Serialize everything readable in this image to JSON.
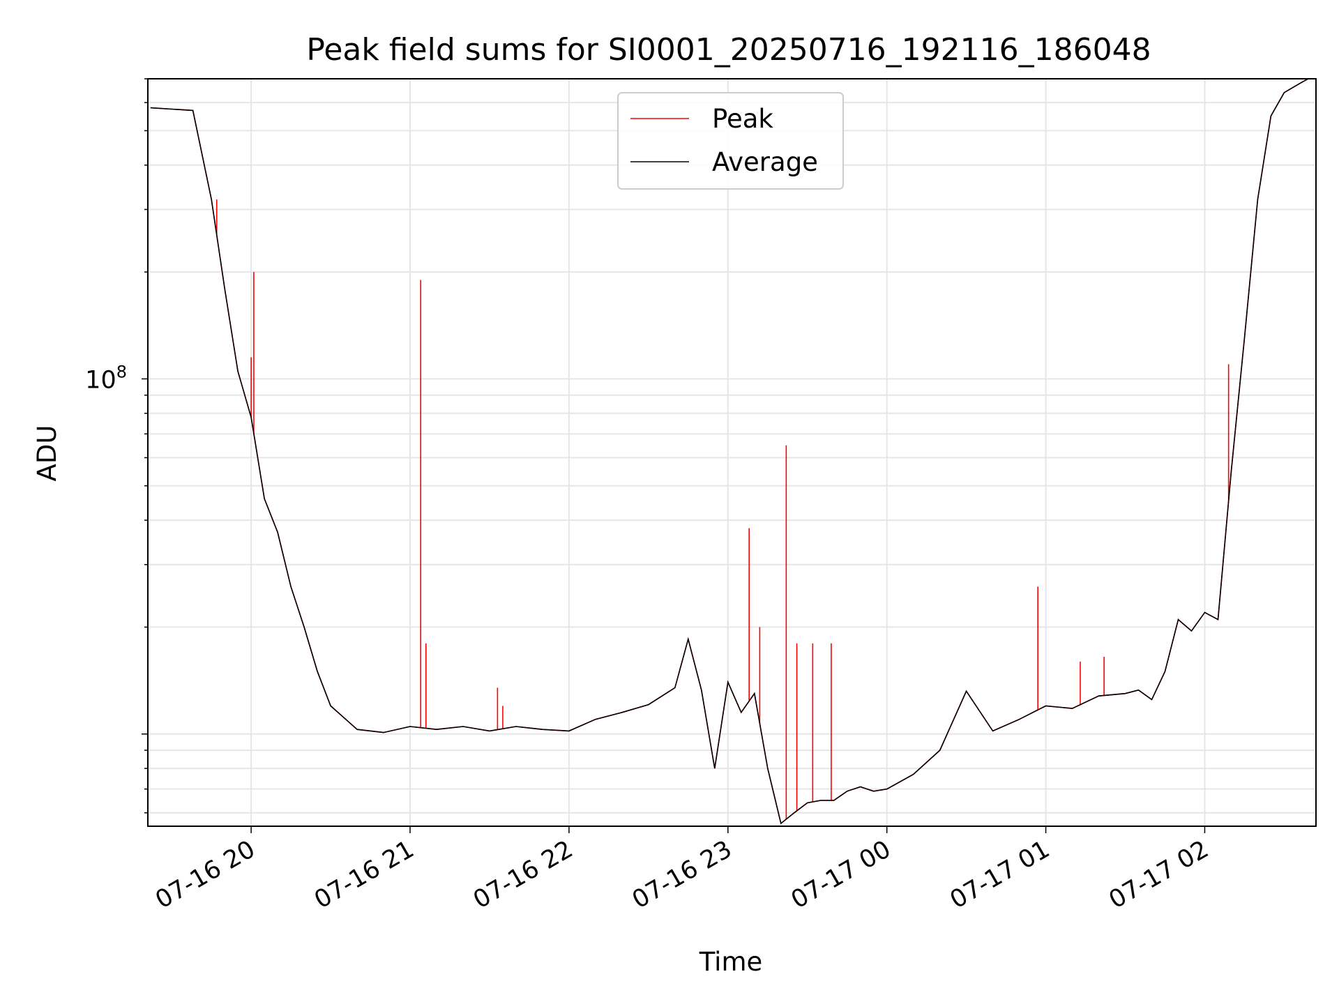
{
  "chart_data": {
    "type": "line",
    "title": "Peak field sums for SI0001_20250716_192116_186048",
    "xlabel": "Time",
    "ylabel": "ADU",
    "yscale": "log",
    "ylim": [
      5500000.0,
      700000000.0
    ],
    "xlim": [
      "2025-07-16 19:21",
      "2025-07-17 02:42"
    ],
    "grid": true,
    "legend_position": "upper center",
    "x_ticks": [
      "07-16 20",
      "07-16 21",
      "07-16 22",
      "07-16 23",
      "07-17 00",
      "07-17 01",
      "07-17 02"
    ],
    "y_ticks": [
      {
        "value": 100000000,
        "base": "10",
        "exponent": "8"
      }
    ],
    "colors": {
      "Peak": "#ff0000",
      "Average": "#000000"
    },
    "series": [
      {
        "name": "Average",
        "x": [
          "2025-07-16 19:22",
          "2025-07-16 19:30",
          "2025-07-16 19:38",
          "2025-07-16 19:45",
          "2025-07-16 19:50",
          "2025-07-16 19:55",
          "2025-07-16 20:00",
          "2025-07-16 20:05",
          "2025-07-16 20:10",
          "2025-07-16 20:15",
          "2025-07-16 20:20",
          "2025-07-16 20:25",
          "2025-07-16 20:30",
          "2025-07-16 20:40",
          "2025-07-16 20:50",
          "2025-07-16 21:00",
          "2025-07-16 21:10",
          "2025-07-16 21:20",
          "2025-07-16 21:30",
          "2025-07-16 21:40",
          "2025-07-16 21:50",
          "2025-07-16 22:00",
          "2025-07-16 22:10",
          "2025-07-16 22:20",
          "2025-07-16 22:30",
          "2025-07-16 22:40",
          "2025-07-16 22:45",
          "2025-07-16 22:50",
          "2025-07-16 22:55",
          "2025-07-16 23:00",
          "2025-07-16 23:05",
          "2025-07-16 23:10",
          "2025-07-16 23:15",
          "2025-07-16 23:20",
          "2025-07-16 23:25",
          "2025-07-16 23:30",
          "2025-07-16 23:35",
          "2025-07-16 23:40",
          "2025-07-16 23:45",
          "2025-07-16 23:50",
          "2025-07-16 23:55",
          "2025-07-17 00:00",
          "2025-07-17 00:10",
          "2025-07-17 00:20",
          "2025-07-17 00:30",
          "2025-07-17 00:40",
          "2025-07-17 00:50",
          "2025-07-17 01:00",
          "2025-07-17 01:10",
          "2025-07-17 01:20",
          "2025-07-17 01:30",
          "2025-07-17 01:35",
          "2025-07-17 01:40",
          "2025-07-17 01:45",
          "2025-07-17 01:50",
          "2025-07-17 01:55",
          "2025-07-17 02:00",
          "2025-07-17 02:05",
          "2025-07-17 02:10",
          "2025-07-17 02:15",
          "2025-07-17 02:20",
          "2025-07-17 02:25",
          "2025-07-17 02:30",
          "2025-07-17 02:36",
          "2025-07-17 02:42"
        ],
        "y": [
          580000000,
          575000000,
          570000000,
          320000000,
          180000000,
          105000000,
          78000000,
          46000000,
          37000000,
          26000000,
          20000000,
          15000000,
          12000000,
          10300000,
          10100000,
          10500000,
          10300000,
          10500000,
          10200000,
          10500000,
          10300000,
          10200000,
          11000000,
          11500000,
          12100000,
          13500000,
          18500000,
          13300000,
          8000000,
          14000000,
          11500000,
          13000000,
          8000000,
          5600000,
          6000000,
          6400000,
          6500000,
          6500000,
          6900000,
          7100000,
          6900000,
          7000000,
          7700000,
          9000000,
          13200000,
          10200000,
          11000000,
          12000000,
          11800000,
          12800000,
          13000000,
          13300000,
          12500000,
          15000000,
          21000000,
          19500000,
          22000000,
          21000000,
          55000000,
          130000000,
          320000000,
          550000000,
          640000000,
          680000000,
          720000000
        ]
      },
      {
        "name": "Peak",
        "x": [
          "2025-07-16 19:22",
          "2025-07-16 19:30",
          "2025-07-16 19:38",
          "2025-07-16 19:45",
          "2025-07-16 19:50",
          "2025-07-16 19:55",
          "2025-07-16 20:00",
          "2025-07-16 20:05",
          "2025-07-16 20:10",
          "2025-07-16 20:15",
          "2025-07-16 20:20",
          "2025-07-16 20:25",
          "2025-07-16 20:30",
          "2025-07-16 20:40",
          "2025-07-16 20:50",
          "2025-07-16 21:00",
          "2025-07-16 21:10",
          "2025-07-16 21:20",
          "2025-07-16 21:30",
          "2025-07-16 21:40",
          "2025-07-16 21:50",
          "2025-07-16 22:00",
          "2025-07-16 22:10",
          "2025-07-16 22:20",
          "2025-07-16 22:30",
          "2025-07-16 22:40",
          "2025-07-16 22:45",
          "2025-07-16 22:50",
          "2025-07-16 22:55",
          "2025-07-16 23:00",
          "2025-07-16 23:05",
          "2025-07-16 23:10",
          "2025-07-16 23:15",
          "2025-07-16 23:20",
          "2025-07-16 23:25",
          "2025-07-16 23:30",
          "2025-07-16 23:35",
          "2025-07-16 23:40",
          "2025-07-16 23:45",
          "2025-07-16 23:50",
          "2025-07-16 23:55",
          "2025-07-17 00:00",
          "2025-07-17 00:10",
          "2025-07-17 00:20",
          "2025-07-17 00:30",
          "2025-07-17 00:40",
          "2025-07-17 00:50",
          "2025-07-17 01:00",
          "2025-07-17 01:10",
          "2025-07-17 01:20",
          "2025-07-17 01:30",
          "2025-07-17 01:35",
          "2025-07-17 01:40",
          "2025-07-17 01:45",
          "2025-07-17 01:50",
          "2025-07-17 01:55",
          "2025-07-17 02:00",
          "2025-07-17 02:05",
          "2025-07-17 02:10",
          "2025-07-17 02:15",
          "2025-07-17 02:20",
          "2025-07-17 02:25",
          "2025-07-17 02:30",
          "2025-07-17 02:36",
          "2025-07-17 02:42"
        ],
        "y": [
          580000000,
          575000000,
          570000000,
          320000000,
          180000000,
          105000000,
          78000000,
          46000000,
          37000000,
          26000000,
          20000000,
          15000000,
          12000000,
          10300000,
          10100000,
          10500000,
          10300000,
          10500000,
          10200000,
          10500000,
          10300000,
          10200000,
          11000000,
          11500000,
          12100000,
          13500000,
          18500000,
          13300000,
          8000000,
          14000000,
          11500000,
          13000000,
          8000000,
          5600000,
          6000000,
          6400000,
          6500000,
          6500000,
          6900000,
          7100000,
          6900000,
          7000000,
          7700000,
          9000000,
          13200000,
          10200000,
          11000000,
          12000000,
          11800000,
          12800000,
          13000000,
          13300000,
          12500000,
          15000000,
          21000000,
          19500000,
          22000000,
          21000000,
          55000000,
          130000000,
          320000000,
          550000000,
          640000000,
          680000000,
          720000000
        ],
        "spikes": [
          {
            "x": "2025-07-16 19:47",
            "y": 320000000
          },
          {
            "x": "2025-07-16 20:00",
            "y": 115000000
          },
          {
            "x": "2025-07-16 20:01",
            "y": 200000000
          },
          {
            "x": "2025-07-16 21:04",
            "y": 190000000
          },
          {
            "x": "2025-07-16 21:06",
            "y": 18000000
          },
          {
            "x": "2025-07-16 21:33",
            "y": 13500000
          },
          {
            "x": "2025-07-16 21:35",
            "y": 12000000
          },
          {
            "x": "2025-07-16 23:08",
            "y": 38000000
          },
          {
            "x": "2025-07-16 23:12",
            "y": 20000000
          },
          {
            "x": "2025-07-16 23:22",
            "y": 65000000
          },
          {
            "x": "2025-07-16 23:26",
            "y": 18000000
          },
          {
            "x": "2025-07-16 23:32",
            "y": 18000000
          },
          {
            "x": "2025-07-16 23:39",
            "y": 18000000
          },
          {
            "x": "2025-07-17 00:57",
            "y": 26000000
          },
          {
            "x": "2025-07-17 01:13",
            "y": 16000000
          },
          {
            "x": "2025-07-17 01:22",
            "y": 16500000
          },
          {
            "x": "2025-07-17 02:09",
            "y": 110000000
          }
        ]
      }
    ]
  }
}
